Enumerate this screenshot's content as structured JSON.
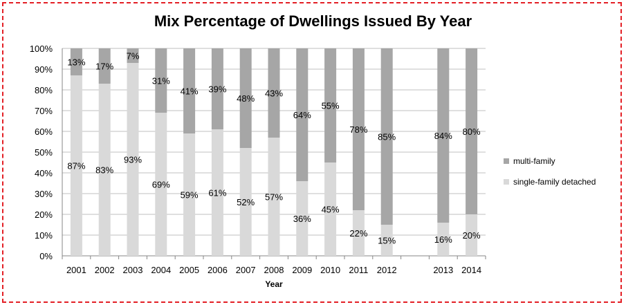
{
  "colors": {
    "border": "#e31e24",
    "multi_family": "#a6a6a6",
    "single_family": "#d9d9d9",
    "grid": "#bfbfbf"
  },
  "chart_data": {
    "type": "bar",
    "stacked": true,
    "percent": true,
    "title": "Mix Percentage of Dwellings Issued By Year",
    "xlabel": "Year",
    "ylabel": "",
    "ylim": [
      0,
      100
    ],
    "yticks": [
      "0%",
      "10%",
      "20%",
      "30%",
      "40%",
      "50%",
      "60%",
      "70%",
      "80%",
      "90%",
      "100%"
    ],
    "categories": [
      "2001",
      "2002",
      "2003",
      "2004",
      "2005",
      "2006",
      "2007",
      "2008",
      "2009",
      "2010",
      "2011",
      "2012",
      "",
      "2013",
      "2014"
    ],
    "series": [
      {
        "name": "single-family detached",
        "color": "#d9d9d9",
        "values": [
          87,
          83,
          93,
          69,
          59,
          61,
          52,
          57,
          36,
          45,
          22,
          15,
          null,
          16,
          20
        ],
        "labels": [
          "87%",
          "83%",
          "93%",
          "69%",
          "59%",
          "61%",
          "52%",
          "57%",
          "36%",
          "45%",
          "22%",
          "15%",
          "",
          "16%",
          "20%"
        ]
      },
      {
        "name": "multi-family",
        "color": "#a6a6a6",
        "values": [
          13,
          17,
          7,
          31,
          41,
          39,
          48,
          43,
          64,
          55,
          78,
          85,
          null,
          84,
          80
        ],
        "labels": [
          "13%",
          "17%",
          "7%",
          "31%",
          "41%",
          "39%",
          "48%",
          "43%",
          "64%",
          "55%",
          "78%",
          "85%",
          "",
          "84%",
          "80%"
        ]
      }
    ],
    "legend": {
      "placement": "right",
      "order": [
        "multi-family",
        "single-family detached"
      ]
    },
    "grid": true
  }
}
